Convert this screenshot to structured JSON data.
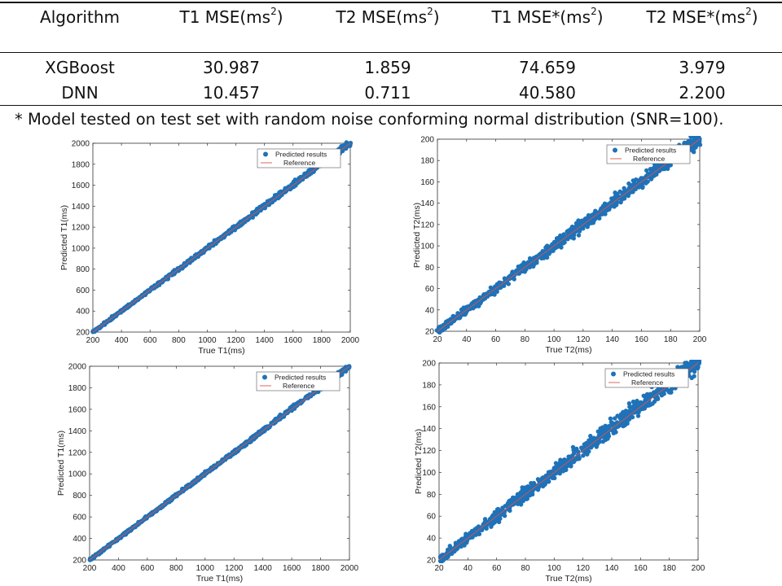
{
  "table": {
    "headers": [
      {
        "base": "Algorithm",
        "sup": "",
        "tail": ""
      },
      {
        "base": "T1 MSE(ms",
        "sup": "2",
        "tail": ")"
      },
      {
        "base": "T2 MSE(ms",
        "sup": "2",
        "tail": ")"
      },
      {
        "base": "T1 MSE*(ms",
        "sup": "2",
        "tail": ")"
      },
      {
        "base": "T2 MSE*(ms",
        "sup": "2",
        "tail": ")"
      }
    ],
    "rows": [
      [
        "XGBoost",
        "30.987",
        "1.859",
        "74.659",
        "3.979"
      ],
      [
        "DNN",
        "10.457",
        "0.711",
        "40.580",
        "2.200"
      ]
    ],
    "footnote": "* Model tested on test set with random noise conforming normal distribution (SNR=100)."
  },
  "colors": {
    "points": "#1f72b8",
    "reference": "#d9534f",
    "axis": "#333333"
  },
  "chart_data": [
    {
      "type": "scatter",
      "id": "t1-top",
      "xlabel": "True T1(ms)",
      "ylabel": "Predicted T1(ms)",
      "xlim": [
        200,
        2000
      ],
      "ylim": [
        200,
        2000
      ],
      "xticks": [
        200,
        400,
        600,
        800,
        1000,
        1200,
        1400,
        1600,
        1800,
        2000
      ],
      "yticks": [
        200,
        400,
        600,
        800,
        1000,
        1200,
        1400,
        1600,
        1800,
        2000
      ],
      "legend": [
        "Predicted results",
        "Reference"
      ],
      "legend_position": "top-right",
      "series": [
        {
          "name": "Predicted results",
          "kind": "points",
          "x": [
            200,
            1000,
            1900,
            1960,
            2000
          ],
          "y": [
            200,
            1000,
            1905,
            1965,
            1990
          ],
          "spread": 14
        },
        {
          "name": "Reference",
          "kind": "line",
          "x": [
            200,
            2000
          ],
          "y": [
            200,
            2000
          ]
        }
      ]
    },
    {
      "type": "scatter",
      "id": "t2-top",
      "xlabel": "True T2(ms)",
      "ylabel": "Predicted T2(ms)",
      "xlim": [
        20,
        200
      ],
      "ylim": [
        20,
        200
      ],
      "xticks": [
        20,
        40,
        60,
        80,
        100,
        120,
        140,
        160,
        180,
        200
      ],
      "yticks": [
        20,
        40,
        60,
        80,
        100,
        120,
        140,
        160,
        180,
        200
      ],
      "legend": [
        "Predicted results",
        "Reference"
      ],
      "legend_position": "top-right",
      "series": [
        {
          "name": "Predicted results",
          "kind": "points",
          "x": [
            20,
            100,
            190,
            196,
            200
          ],
          "y": [
            20,
            100,
            191,
            196,
            198
          ],
          "spread": 3.5
        },
        {
          "name": "Reference",
          "kind": "line",
          "x": [
            20,
            200
          ],
          "y": [
            20,
            200
          ]
        }
      ]
    },
    {
      "type": "scatter",
      "id": "t1-bottom",
      "xlabel": "True T1(ms)",
      "ylabel": "Predicted T1(ms)",
      "xlim": [
        200,
        2000
      ],
      "ylim": [
        200,
        2000
      ],
      "xticks": [
        200,
        400,
        600,
        800,
        1000,
        1200,
        1400,
        1600,
        1800,
        2000
      ],
      "yticks": [
        200,
        400,
        600,
        800,
        1000,
        1200,
        1400,
        1600,
        1800,
        2000
      ],
      "legend": [
        "Predicted results",
        "Reference"
      ],
      "legend_position": "top-right",
      "series": [
        {
          "name": "Predicted results",
          "kind": "points",
          "x": [
            200,
            1000,
            1900,
            1960,
            2000
          ],
          "y": [
            200,
            1000,
            1905,
            1965,
            1995
          ],
          "spread": 11
        },
        {
          "name": "Reference",
          "kind": "line",
          "x": [
            200,
            2000
          ],
          "y": [
            200,
            2000
          ]
        }
      ]
    },
    {
      "type": "scatter",
      "id": "t2-bottom",
      "xlabel": "True T2(ms)",
      "ylabel": "Predicted T2(ms)",
      "xlim": [
        20,
        200
      ],
      "ylim": [
        20,
        200
      ],
      "xticks": [
        20,
        40,
        60,
        80,
        100,
        120,
        140,
        160,
        180,
        200
      ],
      "yticks": [
        20,
        40,
        60,
        80,
        100,
        120,
        140,
        160,
        180,
        200
      ],
      "legend": [
        "Predicted results",
        "Reference"
      ],
      "legend_position": "top-right",
      "series": [
        {
          "name": "Predicted results",
          "kind": "points",
          "x": [
            20,
            100,
            190,
            196,
            200
          ],
          "y": [
            20,
            100,
            191,
            197,
            199
          ],
          "spread": 4.5
        },
        {
          "name": "Reference",
          "kind": "line",
          "x": [
            20,
            200
          ],
          "y": [
            20,
            200
          ]
        }
      ]
    }
  ]
}
